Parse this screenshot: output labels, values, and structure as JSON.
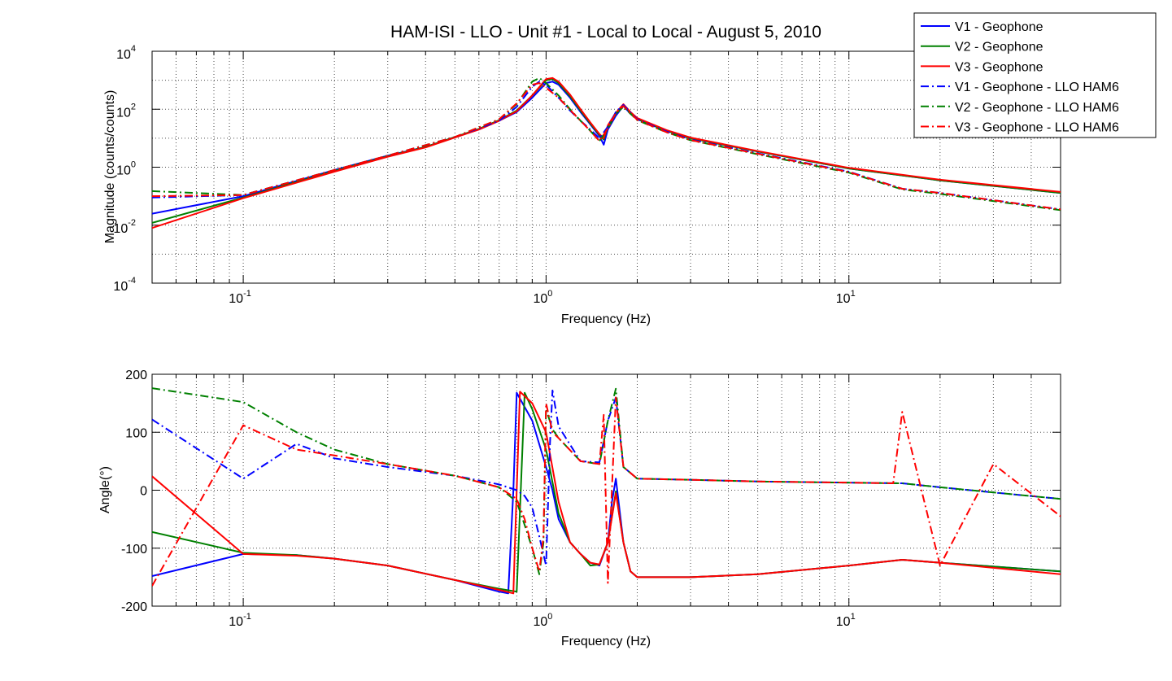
{
  "chart_data": [
    {
      "type": "line",
      "title": "HAM-ISI - LLO - Unit #1 - Local to Local - August 5, 2010",
      "xlabel": "Frequency (Hz)",
      "ylabel": "Magnitude (counts/counts)",
      "xscale": "log",
      "yscale": "log",
      "xlim": [
        0.05,
        50
      ],
      "ylim": [
        0.0001,
        10000
      ],
      "x_ticks": [
        {
          "base": "10",
          "exp": "-1"
        },
        {
          "base": "10",
          "exp": "0"
        },
        {
          "base": "10",
          "exp": "1"
        }
      ],
      "y_ticks": [
        {
          "base": "10",
          "exp": "-4"
        },
        {
          "base": "10",
          "exp": "-2"
        },
        {
          "base": "10",
          "exp": "0"
        },
        {
          "base": "10",
          "exp": "2"
        },
        {
          "base": "10",
          "exp": "4"
        }
      ],
      "grid": true,
      "legend_position": "top-right",
      "series": [
        {
          "name": "V1 - Geophone",
          "color": "#0000ff",
          "style": "solid",
          "x": [
            0.05,
            0.1,
            0.2,
            0.3,
            0.4,
            0.5,
            0.6,
            0.7,
            0.8,
            0.9,
            1.0,
            1.05,
            1.1,
            1.2,
            1.3,
            1.4,
            1.5,
            1.55,
            1.6,
            1.7,
            1.8,
            1.9,
            2.0,
            2.5,
            3,
            5,
            10,
            20,
            50
          ],
          "y": [
            0.025,
            0.1,
            0.8,
            2.5,
            5,
            11,
            20,
            40,
            80,
            250,
            800,
            900,
            700,
            250,
            80,
            30,
            12,
            6,
            20,
            60,
            130,
            70,
            45,
            18,
            10,
            3.5,
            0.9,
            0.35,
            0.13
          ]
        },
        {
          "name": "V2 - Geophone",
          "color": "#008000",
          "style": "solid",
          "x": [
            0.05,
            0.1,
            0.2,
            0.3,
            0.4,
            0.5,
            0.6,
            0.7,
            0.8,
            0.9,
            1.0,
            1.05,
            1.1,
            1.2,
            1.3,
            1.4,
            1.5,
            1.55,
            1.6,
            1.7,
            1.8,
            1.9,
            2.0,
            2.5,
            3,
            5,
            10,
            20,
            50
          ],
          "y": [
            0.012,
            0.09,
            0.75,
            2.4,
            5,
            11,
            21,
            42,
            90,
            300,
            1000,
            1100,
            800,
            280,
            90,
            32,
            13,
            9,
            25,
            70,
            140,
            75,
            47,
            18,
            10,
            3.5,
            0.9,
            0.35,
            0.13
          ]
        },
        {
          "name": "V3 - Geophone",
          "color": "#ff0000",
          "style": "solid",
          "x": [
            0.05,
            0.1,
            0.2,
            0.3,
            0.4,
            0.5,
            0.6,
            0.7,
            0.8,
            0.9,
            1.0,
            1.05,
            1.1,
            1.2,
            1.3,
            1.4,
            1.5,
            1.55,
            1.6,
            1.7,
            1.8,
            1.9,
            2.0,
            2.5,
            3,
            5,
            10,
            20,
            50
          ],
          "y": [
            0.008,
            0.085,
            0.7,
            2.3,
            4.8,
            10.5,
            20,
            40,
            85,
            300,
            1100,
            1200,
            900,
            320,
            100,
            35,
            14,
            10,
            28,
            75,
            150,
            80,
            50,
            19,
            10.5,
            3.6,
            0.95,
            0.37,
            0.14
          ]
        },
        {
          "name": "V1 - Geophone - LLO HAM6",
          "color": "#0000ff",
          "style": "dashdot",
          "x": [
            0.05,
            0.1,
            0.2,
            0.3,
            0.5,
            0.7,
            0.8,
            0.9,
            0.95,
            1.0,
            1.1,
            1.2,
            1.3,
            1.4,
            1.5,
            1.6,
            1.7,
            1.8,
            2.0,
            2.5,
            3,
            5,
            10,
            15,
            20,
            50
          ],
          "y": [
            0.09,
            0.11,
            0.8,
            2.5,
            11,
            40,
            120,
            600,
            900,
            700,
            250,
            90,
            40,
            20,
            10,
            25,
            80,
            140,
            45,
            17,
            9,
            3,
            0.7,
            0.18,
            0.13,
            0.035
          ]
        },
        {
          "name": "V2 - Geophone - LLO HAM6",
          "color": "#008000",
          "style": "dashdot",
          "x": [
            0.05,
            0.1,
            0.2,
            0.3,
            0.5,
            0.7,
            0.8,
            0.9,
            0.95,
            1.0,
            1.1,
            1.2,
            1.3,
            1.4,
            1.5,
            1.6,
            1.7,
            1.8,
            2.0,
            2.5,
            3,
            5,
            10,
            15,
            20,
            50
          ],
          "y": [
            0.15,
            0.11,
            0.8,
            2.5,
            11,
            45,
            150,
            900,
            1200,
            800,
            300,
            100,
            40,
            18,
            8,
            22,
            70,
            120,
            42,
            16,
            8.5,
            2.8,
            0.65,
            0.17,
            0.12,
            0.033
          ]
        },
        {
          "name": "V3 - Geophone - LLO HAM6",
          "color": "#ff0000",
          "style": "dashdot",
          "x": [
            0.05,
            0.1,
            0.2,
            0.3,
            0.5,
            0.7,
            0.8,
            0.9,
            0.95,
            1.0,
            1.1,
            1.2,
            1.3,
            1.4,
            1.5,
            1.6,
            1.7,
            1.8,
            2.0,
            2.5,
            3,
            5,
            10,
            15,
            20,
            50
          ],
          "y": [
            0.1,
            0.11,
            0.8,
            2.5,
            11,
            45,
            160,
            700,
            800,
            550,
            250,
            95,
            40,
            18,
            8,
            22,
            75,
            130,
            43,
            16,
            8.6,
            2.9,
            0.68,
            0.18,
            0.13,
            0.035
          ]
        }
      ]
    },
    {
      "type": "line",
      "xlabel": "Frequency (Hz)",
      "ylabel": "Angle(°)",
      "xscale": "log",
      "yscale": "linear",
      "xlim": [
        0.05,
        50
      ],
      "ylim": [
        -200,
        200
      ],
      "x_ticks": [
        {
          "base": "10",
          "exp": "-1"
        },
        {
          "base": "10",
          "exp": "0"
        },
        {
          "base": "10",
          "exp": "1"
        }
      ],
      "y_ticks": [
        {
          "label": "200",
          "value": 200
        },
        {
          "label": "100",
          "value": 100
        },
        {
          "label": "0",
          "value": 0
        },
        {
          "label": "-100",
          "value": -100
        },
        {
          "label": "-200",
          "value": -200
        }
      ],
      "grid": true,
      "series": [
        {
          "name": "V1 - Geophone",
          "color": "#0000ff",
          "style": "solid",
          "x": [
            0.05,
            0.1,
            0.15,
            0.2,
            0.3,
            0.5,
            0.7,
            0.75,
            0.78,
            0.8,
            0.9,
            1.0,
            1.05,
            1.1,
            1.2,
            1.3,
            1.4,
            1.5,
            1.6,
            1.65,
            1.7,
            1.8,
            1.9,
            2.0,
            3,
            5,
            10,
            15,
            20,
            50
          ],
          "y": [
            -148,
            -110,
            -112,
            -118,
            -130,
            -155,
            -175,
            -178,
            0,
            168,
            120,
            40,
            0,
            -50,
            -90,
            -110,
            -125,
            -130,
            -90,
            -20,
            20,
            -90,
            -140,
            -150,
            -150,
            -145,
            -130,
            -120,
            -125,
            -140
          ]
        },
        {
          "name": "V2 - Geophone",
          "color": "#008000",
          "style": "solid",
          "x": [
            0.05,
            0.1,
            0.15,
            0.2,
            0.3,
            0.5,
            0.7,
            0.8,
            0.85,
            0.9,
            1.0,
            1.1,
            1.2,
            1.3,
            1.4,
            1.5,
            1.6,
            1.7,
            1.8,
            1.9,
            2.0,
            3,
            5,
            10,
            15,
            20,
            50
          ],
          "y": [
            -72,
            -108,
            -112,
            -118,
            -130,
            -155,
            -170,
            -175,
            168,
            140,
            70,
            -40,
            -90,
            -110,
            -130,
            -128,
            -90,
            -2,
            -90,
            -140,
            -150,
            -150,
            -145,
            -130,
            -120,
            -125,
            -140
          ]
        },
        {
          "name": "V3 - Geophone",
          "color": "#ff0000",
          "style": "solid",
          "x": [
            0.05,
            0.1,
            0.15,
            0.2,
            0.3,
            0.5,
            0.7,
            0.78,
            0.8,
            0.82,
            0.9,
            1.0,
            1.1,
            1.2,
            1.3,
            1.4,
            1.5,
            1.6,
            1.7,
            1.8,
            1.9,
            2.0,
            3,
            5,
            10,
            15,
            20,
            50
          ],
          "y": [
            24,
            -110,
            -113,
            -118,
            -130,
            -155,
            -172,
            -178,
            0,
            170,
            150,
            100,
            -20,
            -90,
            -110,
            -125,
            -128,
            -90,
            -5,
            -90,
            -140,
            -150,
            -150,
            -145,
            -130,
            -120,
            -125,
            -145
          ]
        },
        {
          "name": "V1 - Geophone - LLO HAM6",
          "color": "#0000ff",
          "style": "dashdot",
          "x": [
            0.05,
            0.1,
            0.15,
            0.2,
            0.3,
            0.5,
            0.7,
            0.8,
            0.85,
            0.9,
            0.95,
            1.0,
            1.03,
            1.05,
            1.1,
            1.3,
            1.5,
            1.6,
            1.7,
            1.8,
            2.0,
            3,
            5,
            10,
            15,
            20,
            50
          ],
          "y": [
            122,
            20,
            80,
            55,
            40,
            25,
            10,
            0,
            -10,
            -30,
            -80,
            -130,
            80,
            172,
            110,
            50,
            48,
            120,
            160,
            40,
            20,
            18,
            15,
            13,
            12,
            5,
            -15
          ]
        },
        {
          "name": "V2 - Geophone - LLO HAM6",
          "color": "#008000",
          "style": "dashdot",
          "x": [
            0.05,
            0.1,
            0.15,
            0.2,
            0.3,
            0.5,
            0.7,
            0.8,
            0.85,
            0.9,
            0.95,
            0.98,
            1.0,
            1.05,
            1.1,
            1.3,
            1.5,
            1.6,
            1.7,
            1.8,
            2.0,
            3,
            5,
            10,
            15,
            20,
            50
          ],
          "y": [
            176,
            152,
            100,
            70,
            45,
            25,
            5,
            -20,
            -60,
            -100,
            -145,
            -90,
            140,
            105,
            90,
            50,
            45,
            120,
            175,
            40,
            20,
            18,
            15,
            13,
            12,
            5,
            -15
          ]
        },
        {
          "name": "V3 - Geophone - LLO HAM6",
          "color": "#ff0000",
          "style": "dashdot",
          "x": [
            0.05,
            0.1,
            0.15,
            0.2,
            0.3,
            0.5,
            0.7,
            0.8,
            0.85,
            0.9,
            0.95,
            0.98,
            1.0,
            1.05,
            1.1,
            1.3,
            1.5,
            1.55,
            1.6,
            1.7,
            1.8,
            2.0,
            3,
            5,
            10,
            14,
            15,
            20,
            30,
            50
          ],
          "y": [
            -165,
            112,
            70,
            60,
            45,
            25,
            5,
            -15,
            -50,
            -100,
            -140,
            -80,
            150,
            100,
            90,
            50,
            45,
            130,
            -160,
            160,
            40,
            20,
            18,
            15,
            13,
            12,
            135,
            -130,
            45,
            -45
          ]
        }
      ]
    }
  ]
}
